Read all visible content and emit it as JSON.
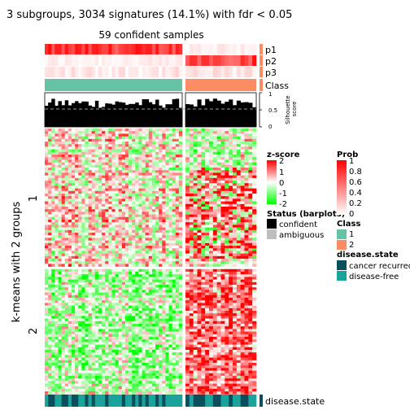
{
  "chart_data": {
    "type": "heatmap",
    "title": "3 subgroups, 3034 signatures (14.1%) with fdr < 0.05",
    "subtitle": "59 confident samples",
    "ylabel": "k-means with 2 groups",
    "row_groups": [
      "1",
      "2"
    ],
    "column_groups": [
      "1",
      "2"
    ],
    "annotation_rows": [
      "p1",
      "p2",
      "p3",
      "Class"
    ],
    "silhouette_ticks": [
      "1",
      "0.5",
      "0"
    ],
    "silhouette_label": [
      "Silhouette",
      "score"
    ],
    "bottom_annotation": "disease.state",
    "legends": {
      "zscore": {
        "title": "z-score",
        "ticks": [
          "2",
          "1",
          "0",
          "-1",
          "-2"
        ],
        "colors": [
          "#ff0000",
          "#ffffff",
          "#00ff00"
        ]
      },
      "prob": {
        "title": "Prob",
        "ticks": [
          "1",
          "0.8",
          "0.6",
          "0.4",
          "0.2",
          "0"
        ],
        "colors": [
          "#ff0000",
          "#ffffff"
        ]
      },
      "status": {
        "title": "Status (barplots)",
        "items": [
          {
            "label": "confident",
            "color": "#000000"
          },
          {
            "label": "ambiguous",
            "color": "#bebebe"
          }
        ]
      },
      "class": {
        "title": "Class",
        "items": [
          {
            "label": "1",
            "color": "#66c2a5"
          },
          {
            "label": "2",
            "color": "#fc8d62"
          }
        ]
      },
      "disease_state": {
        "title": "disease.state",
        "items": [
          {
            "label": "cancer recurred",
            "color": "#0b4f5c"
          },
          {
            "label": "disease-free",
            "color": "#1aa39a"
          }
        ]
      }
    }
  }
}
